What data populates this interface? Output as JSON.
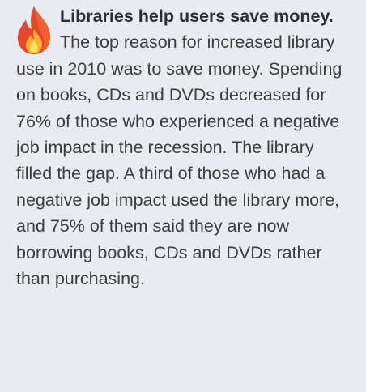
{
  "heading": "Libraries help users save money.",
  "body": "The top reason for increased library use in 2010 was to save money. Spending on books, CDs and DVDs decreased for 76% of those who experienced a negative job impact in the recession. The library filled the gap. A third of those who had a negative job impact used the library more, and 75% of them said they are now borrowing books, CDs and DVDs rather than purchasing."
}
